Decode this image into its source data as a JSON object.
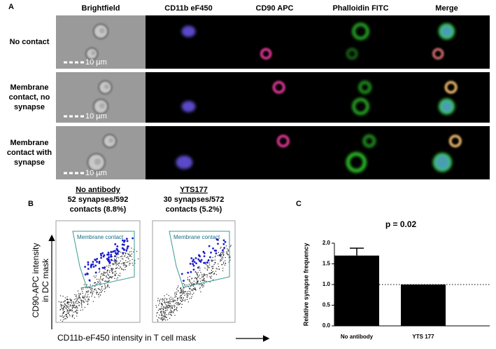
{
  "panel_labels": [
    "A",
    "B",
    "C"
  ],
  "panel_a": {
    "columns": [
      "Brightfield",
      "CD11b eF450",
      "CD90 APC",
      "Phalloidin FITC",
      "Merge"
    ],
    "rows": [
      "No contact",
      "Membrane contact, no synapse",
      "Membrane contact with synapse"
    ],
    "scale_bar": "10 µm"
  },
  "panel_b": {
    "plots": [
      {
        "title": "No antibody",
        "subtitle": [
          "52 synapses/592",
          "contacts (8.8%)"
        ],
        "gate": "Membrane contact"
      },
      {
        "title": "YTS177",
        "subtitle": [
          "30 synapses/572",
          "contacts (5.2%)"
        ],
        "gate": "Membrane contact"
      }
    ],
    "y_label": [
      "CD90-APC intensity",
      "in DC mask"
    ],
    "x_label": "CD11b-eF450 intensity in T cell mask"
  },
  "chart_data": {
    "type": "bar",
    "title": "p = 0.02",
    "y_label": "Relative synapse frequency",
    "categories": [
      "No antibody",
      "YTS 177"
    ],
    "values": [
      1.7,
      1.0
    ],
    "errors": [
      0.18,
      null
    ],
    "color": "#000000",
    "reference_line": 1.0,
    "ylim": [
      0,
      2.0
    ],
    "yticks": [
      {
        "value": 0,
        "label": "0.0"
      },
      0.5,
      {
        "value": 1.0,
        "label": "1.0"
      },
      1.5,
      {
        "value": 2.0,
        "label": "2.0"
      }
    ]
  }
}
